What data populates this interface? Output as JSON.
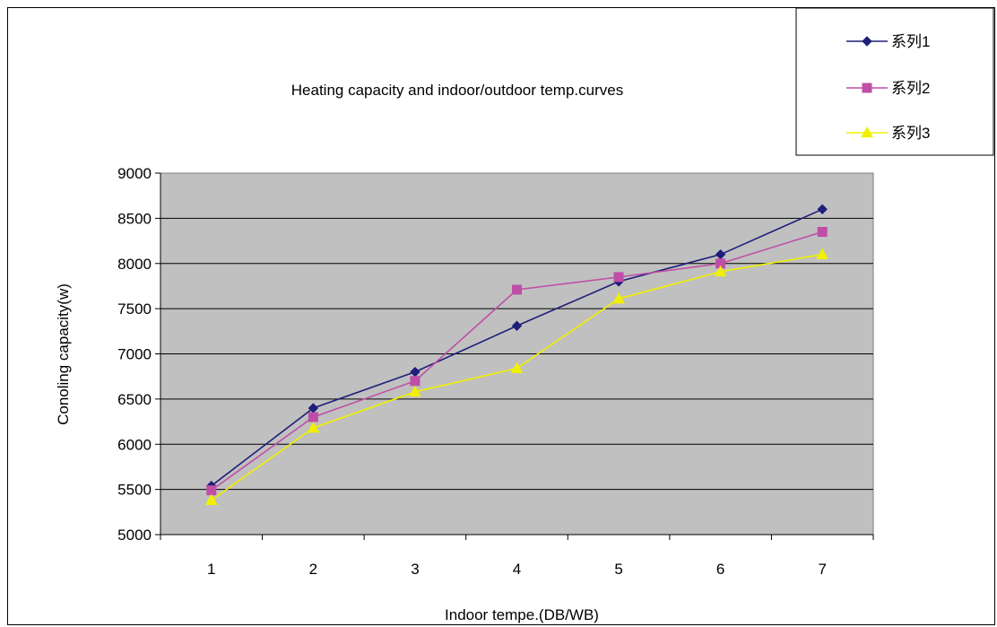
{
  "chart_data": {
    "type": "line",
    "title": "Heating capacity and indoor/outdoor temp.curves",
    "xlabel": "Indoor tempe.(DB/WB)",
    "ylabel": "Conoling capacity(w)",
    "categories": [
      "1",
      "2",
      "3",
      "4",
      "5",
      "6",
      "7"
    ],
    "y_ticks": [
      "5000",
      "5500",
      "6000",
      "6500",
      "7000",
      "7500",
      "8000",
      "8500",
      "9000"
    ],
    "ylim": [
      5000,
      9000
    ],
    "grid": "horizontal",
    "legend_position": "top-right",
    "plot_background": "#c0c0c0",
    "series": [
      {
        "name": "系列1",
        "color": "#1f1f7a",
        "marker": "diamond",
        "values": [
          5540,
          6400,
          6800,
          7310,
          7800,
          8100,
          8600
        ]
      },
      {
        "name": "系列2",
        "color": "#bf4fa6",
        "marker": "square",
        "values": [
          5490,
          6300,
          6700,
          7710,
          7850,
          8000,
          8350
        ]
      },
      {
        "name": "系列3",
        "color": "#f0f000",
        "marker": "triangle",
        "values": [
          5380,
          6180,
          6580,
          6840,
          7610,
          7910,
          8100
        ]
      }
    ]
  }
}
